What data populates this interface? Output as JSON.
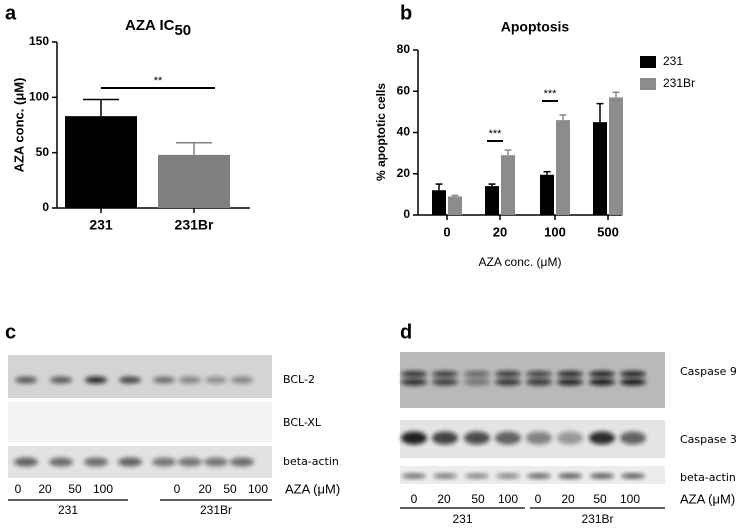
{
  "chart_data": [
    {
      "type": "bar",
      "panel": "a",
      "title": "AZA IC",
      "title_subscript": "50",
      "y_label": "AZA conc. (μM)",
      "categories": [
        "231",
        "231Br"
      ],
      "values": [
        83,
        48
      ],
      "errors": [
        15,
        11
      ],
      "colors": [
        "#000000",
        "#808080"
      ],
      "ylim": [
        0,
        150
      ],
      "yticks": [
        0,
        50,
        100,
        150
      ],
      "significance": [
        "**"
      ]
    },
    {
      "type": "grouped_bar",
      "panel": "b",
      "title": "Apoptosis",
      "y_label": "% apoptotic cells",
      "x_label": "AZA conc. (μM)",
      "categories": [
        "0",
        "20",
        "100",
        "500"
      ],
      "series": [
        {
          "name": "231",
          "color": "#000000",
          "values": [
            12,
            14,
            19.5,
            45
          ],
          "errors": [
            3,
            1,
            1.5,
            9
          ]
        },
        {
          "name": "231Br",
          "color": "#8c8c8c",
          "values": [
            9,
            29,
            46,
            57
          ],
          "errors": [
            0.5,
            2.5,
            2.5,
            2.5
          ]
        }
      ],
      "ylim": [
        0,
        80
      ],
      "yticks": [
        0,
        20,
        40,
        60,
        80
      ],
      "legend": "right",
      "significance": [
        "***",
        "***"
      ]
    }
  ],
  "blot_c": {
    "panel": "c",
    "rows": [
      "BCL-2",
      "BCL-XL",
      "beta-actin"
    ],
    "lanes": [
      "0",
      "20",
      "50",
      "100",
      "0",
      "20",
      "50",
      "100"
    ],
    "unit": "AZA (μM)",
    "groups": [
      "231",
      "231Br"
    ]
  },
  "blot_d": {
    "panel": "d",
    "rows": [
      "Caspase 9",
      "Caspase 3",
      "beta-actin"
    ],
    "lanes": [
      "0",
      "20",
      "50",
      "100",
      "0",
      "20",
      "50",
      "100"
    ],
    "unit": "AZA (μM)",
    "groups": [
      "231",
      "231Br"
    ]
  }
}
